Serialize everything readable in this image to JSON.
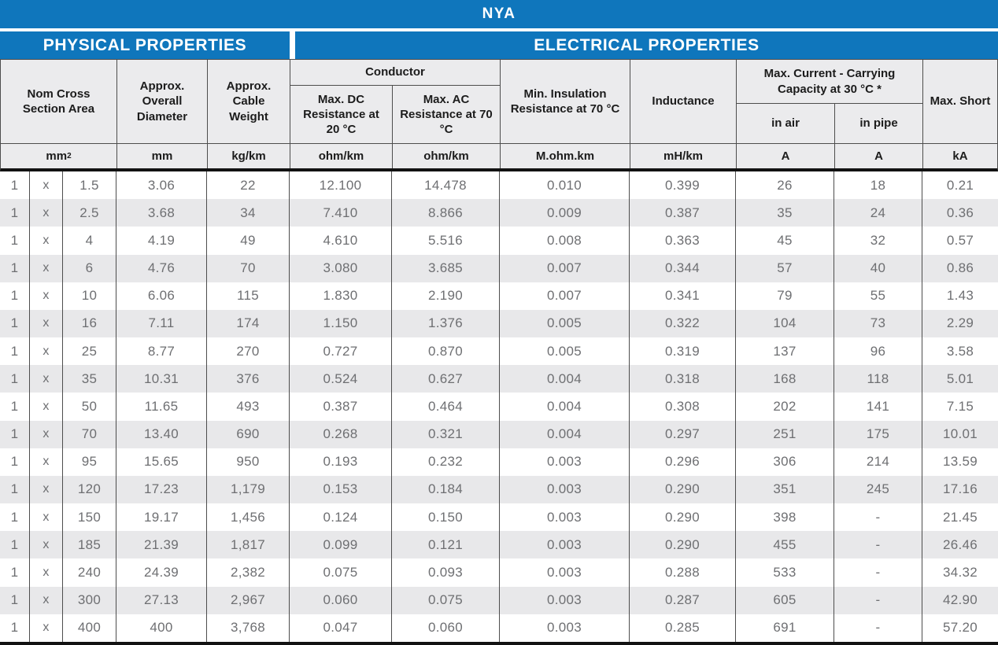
{
  "title": "NYA",
  "sections": {
    "physical": "PHYSICAL PROPERTIES",
    "electrical": "ELECTRICAL PROPERTIES"
  },
  "headers": {
    "nom_cross_section_area": "Nom Cross Section Area",
    "approx_overall_diameter": "Approx. Overall Diameter",
    "approx_cable_weight": "Approx. Cable Weight",
    "conductor": "Conductor",
    "max_dc_resistance": "Max. DC Resistance at 20 °C",
    "max_ac_resistance": "Max. AC Resistance at 70 °C",
    "min_insulation_resistance": "Min. Insulation Resistance at 70 °C",
    "inductance": "Inductance",
    "max_current_capacity": "Max. Current - Carrying Capacity at 30 °C *",
    "in_air": "in air",
    "in_pipe": "in pipe",
    "max_short": "Max. Short"
  },
  "units": {
    "cross_section": "mm",
    "cross_section_sup": "2",
    "diameter": "mm",
    "weight": "kg/km",
    "dc_resistance": "ohm/km",
    "ac_resistance": "ohm/km",
    "insulation": "M.ohm.km",
    "inductance": "mH/km",
    "in_air": "A",
    "in_pipe": "A",
    "max_short": "kA"
  },
  "colors": {
    "brand_blue": "#0f76bc",
    "row_alt_gray": "#e8e8ea",
    "header_cell_gray": "#ebebed",
    "grid_line": "#4d4d4d",
    "data_text": "#6e6f72"
  },
  "rows": [
    [
      "1",
      "x",
      "1.5",
      "3.06",
      "22",
      "12.100",
      "14.478",
      "0.010",
      "0.399",
      "26",
      "18",
      "0.21"
    ],
    [
      "1",
      "x",
      "2.5",
      "3.68",
      "34",
      "7.410",
      "8.866",
      "0.009",
      "0.387",
      "35",
      "24",
      "0.36"
    ],
    [
      "1",
      "x",
      "4",
      "4.19",
      "49",
      "4.610",
      "5.516",
      "0.008",
      "0.363",
      "45",
      "32",
      "0.57"
    ],
    [
      "1",
      "x",
      "6",
      "4.76",
      "70",
      "3.080",
      "3.685",
      "0.007",
      "0.344",
      "57",
      "40",
      "0.86"
    ],
    [
      "1",
      "x",
      "10",
      "6.06",
      "115",
      "1.830",
      "2.190",
      "0.007",
      "0.341",
      "79",
      "55",
      "1.43"
    ],
    [
      "1",
      "x",
      "16",
      "7.11",
      "174",
      "1.150",
      "1.376",
      "0.005",
      "0.322",
      "104",
      "73",
      "2.29"
    ],
    [
      "1",
      "x",
      "25",
      "8.77",
      "270",
      "0.727",
      "0.870",
      "0.005",
      "0.319",
      "137",
      "96",
      "3.58"
    ],
    [
      "1",
      "x",
      "35",
      "10.31",
      "376",
      "0.524",
      "0.627",
      "0.004",
      "0.318",
      "168",
      "118",
      "5.01"
    ],
    [
      "1",
      "x",
      "50",
      "11.65",
      "493",
      "0.387",
      "0.464",
      "0.004",
      "0.308",
      "202",
      "141",
      "7.15"
    ],
    [
      "1",
      "x",
      "70",
      "13.40",
      "690",
      "0.268",
      "0.321",
      "0.004",
      "0.297",
      "251",
      "175",
      "10.01"
    ],
    [
      "1",
      "x",
      "95",
      "15.65",
      "950",
      "0.193",
      "0.232",
      "0.003",
      "0.296",
      "306",
      "214",
      "13.59"
    ],
    [
      "1",
      "x",
      "120",
      "17.23",
      "1,179",
      "0.153",
      "0.184",
      "0.003",
      "0.290",
      "351",
      "245",
      "17.16"
    ],
    [
      "1",
      "x",
      "150",
      "19.17",
      "1,456",
      "0.124",
      "0.150",
      "0.003",
      "0.290",
      "398",
      "-",
      "21.45"
    ],
    [
      "1",
      "x",
      "185",
      "21.39",
      "1,817",
      "0.099",
      "0.121",
      "0.003",
      "0.290",
      "455",
      "-",
      "26.46"
    ],
    [
      "1",
      "x",
      "240",
      "24.39",
      "2,382",
      "0.075",
      "0.093",
      "0.003",
      "0.288",
      "533",
      "-",
      "34.32"
    ],
    [
      "1",
      "x",
      "300",
      "27.13",
      "2,967",
      "0.060",
      "0.075",
      "0.003",
      "0.287",
      "605",
      "-",
      "42.90"
    ],
    [
      "1",
      "x",
      "400",
      "400",
      "3,768",
      "0.047",
      "0.060",
      "0.003",
      "0.285",
      "691",
      "-",
      "57.20"
    ]
  ]
}
